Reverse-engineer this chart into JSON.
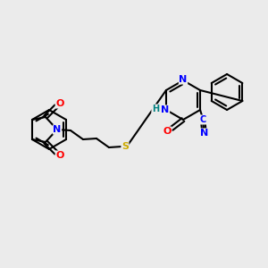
{
  "background_color": "#ebebeb",
  "bond_color": "#000000",
  "atom_colors": {
    "N": "#0000ff",
    "O": "#ff0000",
    "S": "#ccaa00",
    "H": "#008080",
    "CN_N": "#0000ff"
  },
  "figsize": [
    3.0,
    3.0
  ],
  "dpi": 100
}
